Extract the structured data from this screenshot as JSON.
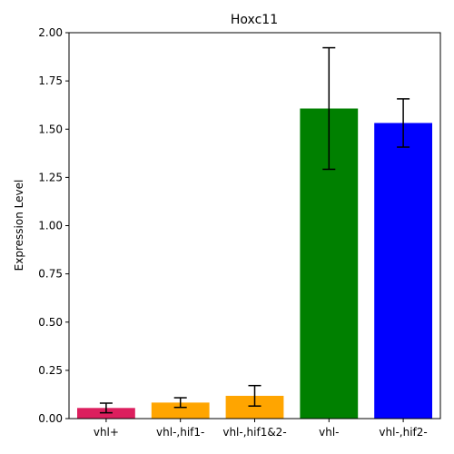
{
  "chart_data": {
    "type": "bar",
    "title": "Hoxc11",
    "xlabel": "",
    "ylabel": "Expression Level",
    "categories": [
      "vhl+",
      "vhl-,hif1-",
      "vhl-,hif1&2-",
      "vhl-",
      "vhl-,hif2-"
    ],
    "values": [
      0.055,
      0.083,
      0.118,
      1.607,
      1.532
    ],
    "errors": [
      0.025,
      0.025,
      0.053,
      0.315,
      0.125
    ],
    "colors": [
      "#dc1f5e",
      "#ffa500",
      "#ffa500",
      "#008000",
      "#0000ff"
    ],
    "ylim": [
      0,
      2.0
    ],
    "yticks": [
      0.0,
      0.25,
      0.5,
      0.75,
      1.0,
      1.25,
      1.5,
      1.75,
      2.0
    ],
    "ytick_labels": [
      "0.00",
      "0.25",
      "0.50",
      "0.75",
      "1.00",
      "1.25",
      "1.50",
      "1.75",
      "2.00"
    ],
    "grid": false
  }
}
